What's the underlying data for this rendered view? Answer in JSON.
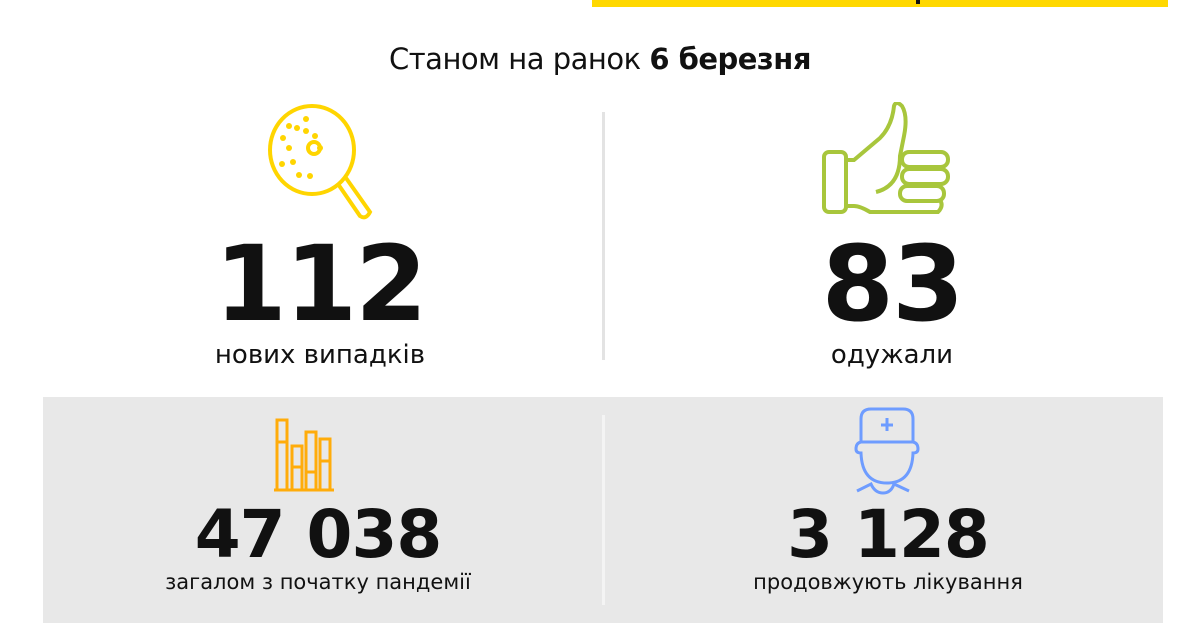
{
  "header": {
    "date_prefix": "Станом на ранок",
    "date_value": "6 березня"
  },
  "stats": [
    {
      "value": "112",
      "label": "нових випадків",
      "icon": "virus-magnifier-icon",
      "color": "#ffd500"
    },
    {
      "value": "83",
      "label": "одужали",
      "icon": "thumbs-up-icon",
      "color": "#a8c63c"
    },
    {
      "value": "47 038",
      "label": "загалом з початку пандемії",
      "icon": "bar-chart-icon",
      "color": "#ffac0a"
    },
    {
      "value": "3 128",
      "label": "продовжують лікування",
      "icon": "doctor-icon",
      "color": "#6e9cff"
    }
  ],
  "colors": {
    "accent": "#ffd800",
    "panel": "#e8e8e8"
  }
}
